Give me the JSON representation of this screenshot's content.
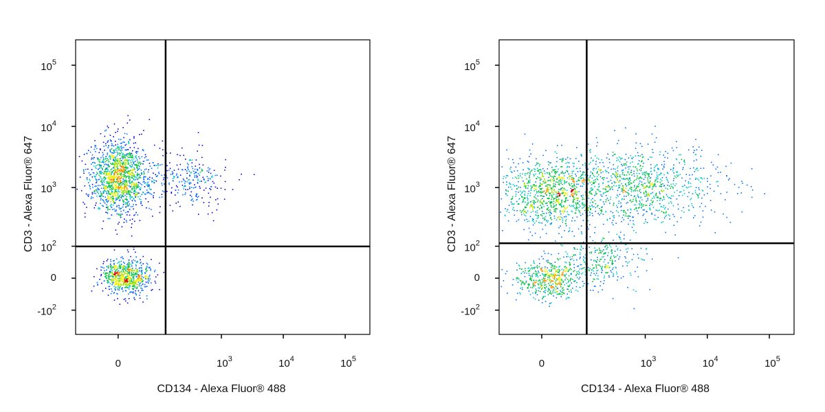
{
  "chart_data": [
    {
      "type": "flow-density",
      "x_label": "CD134 - Alexa Fluor® 488",
      "y_label": "CD3 - Alexa Fluor® 647",
      "xlim": [
        -100,
        250000
      ],
      "ylim": [
        -270,
        260000
      ],
      "xscale": "biexponential",
      "yscale": "biexponential",
      "xticks": [
        {
          "value": 0,
          "label": "0"
        },
        {
          "value": 1000,
          "label": "10",
          "exp": "3"
        },
        {
          "value": 10000,
          "label": "10",
          "exp": "4"
        },
        {
          "value": 100000,
          "label": "10",
          "exp": "5"
        }
      ],
      "yticks": [
        {
          "value": 100000,
          "label": "10",
          "exp": "5"
        },
        {
          "value": 10000,
          "label": "10",
          "exp": "4"
        },
        {
          "value": 1000,
          "label": "10",
          "exp": "3"
        },
        {
          "value": 100,
          "label": "10",
          "exp": "2"
        },
        {
          "value": 0,
          "label": "0"
        },
        {
          "value": -100,
          "label": "-10",
          "exp": "2"
        }
      ],
      "gate": {
        "x": 122,
        "y": 99
      }
    },
    {
      "type": "flow-density",
      "x_label": "CD134 - Alexa Fluor® 488",
      "y_label": "CD3 - Alexa Fluor® 647",
      "xlim": [
        -100,
        250000
      ],
      "ylim": [
        -270,
        260000
      ],
      "xscale": "biexponential",
      "yscale": "biexponential",
      "xticks": [
        {
          "value": 0,
          "label": "0"
        },
        {
          "value": 1000,
          "label": "10",
          "exp": "3"
        },
        {
          "value": 10000,
          "label": "10",
          "exp": "4"
        },
        {
          "value": 100000,
          "label": "10",
          "exp": "5"
        }
      ],
      "yticks": [
        {
          "value": 100000,
          "label": "10",
          "exp": "5"
        },
        {
          "value": 10000,
          "label": "10",
          "exp": "4"
        },
        {
          "value": 1000,
          "label": "10",
          "exp": "3"
        },
        {
          "value": 100,
          "label": "10",
          "exp": "2"
        },
        {
          "value": 0,
          "label": "0"
        },
        {
          "value": -100,
          "label": "-10",
          "exp": "2"
        }
      ],
      "gate": {
        "x": 110,
        "y": 114
      }
    }
  ]
}
